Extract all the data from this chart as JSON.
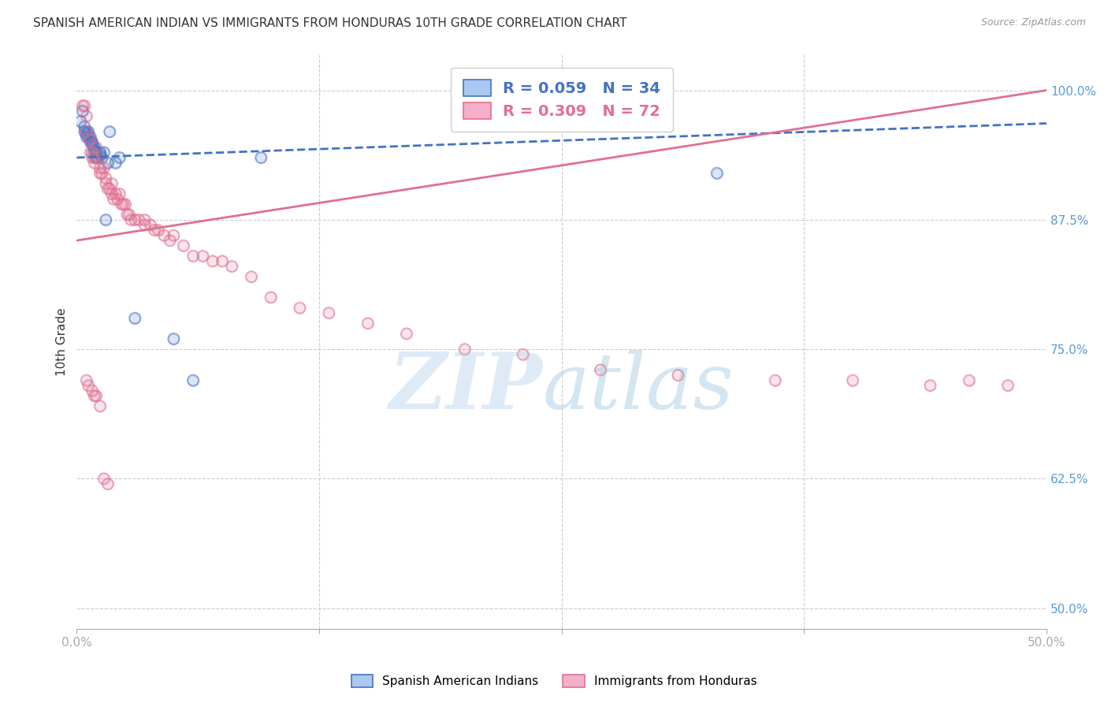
{
  "title": "SPANISH AMERICAN INDIAN VS IMMIGRANTS FROM HONDURAS 10TH GRADE CORRELATION CHART",
  "source": "Source: ZipAtlas.com",
  "ylabel": "10th Grade",
  "ylabel_color": "#333333",
  "ytick_labels": [
    "100.0%",
    "87.5%",
    "75.0%",
    "62.5%",
    "50.0%"
  ],
  "ytick_values": [
    1.0,
    0.875,
    0.75,
    0.625,
    0.5
  ],
  "xmin": 0.0,
  "xmax": 0.5,
  "ymin": 0.48,
  "ymax": 1.035,
  "blue_scatter_x": [
    0.002,
    0.003,
    0.004,
    0.004,
    0.005,
    0.005,
    0.005,
    0.006,
    0.006,
    0.007,
    0.007,
    0.007,
    0.008,
    0.008,
    0.009,
    0.009,
    0.01,
    0.01,
    0.011,
    0.012,
    0.012,
    0.013,
    0.014,
    0.015,
    0.016,
    0.017,
    0.02,
    0.022,
    0.03,
    0.05,
    0.06,
    0.095,
    0.2,
    0.33
  ],
  "blue_scatter_y": [
    0.97,
    0.98,
    0.965,
    0.96,
    0.958,
    0.955,
    0.96,
    0.96,
    0.955,
    0.955,
    0.952,
    0.95,
    0.95,
    0.948,
    0.945,
    0.942,
    0.935,
    0.94,
    0.935,
    0.938,
    0.94,
    0.935,
    0.94,
    0.875,
    0.93,
    0.96,
    0.93,
    0.935,
    0.78,
    0.76,
    0.72,
    0.935,
    0.98,
    0.92
  ],
  "pink_scatter_x": [
    0.003,
    0.004,
    0.005,
    0.005,
    0.006,
    0.007,
    0.007,
    0.008,
    0.008,
    0.009,
    0.009,
    0.01,
    0.011,
    0.012,
    0.012,
    0.013,
    0.014,
    0.015,
    0.015,
    0.016,
    0.017,
    0.018,
    0.018,
    0.019,
    0.02,
    0.021,
    0.022,
    0.023,
    0.024,
    0.025,
    0.026,
    0.027,
    0.028,
    0.03,
    0.032,
    0.035,
    0.035,
    0.038,
    0.04,
    0.042,
    0.045,
    0.048,
    0.05,
    0.055,
    0.06,
    0.065,
    0.07,
    0.075,
    0.08,
    0.09,
    0.1,
    0.115,
    0.13,
    0.15,
    0.17,
    0.2,
    0.23,
    0.27,
    0.31,
    0.36,
    0.4,
    0.44,
    0.46,
    0.48,
    0.005,
    0.006,
    0.008,
    0.009,
    0.01,
    0.012,
    0.014,
    0.016
  ],
  "pink_scatter_y": [
    0.985,
    0.985,
    0.975,
    0.96,
    0.955,
    0.952,
    0.94,
    0.94,
    0.935,
    0.935,
    0.93,
    0.945,
    0.935,
    0.925,
    0.92,
    0.92,
    0.925,
    0.915,
    0.91,
    0.905,
    0.905,
    0.91,
    0.9,
    0.895,
    0.9,
    0.895,
    0.9,
    0.89,
    0.89,
    0.89,
    0.88,
    0.88,
    0.875,
    0.875,
    0.875,
    0.875,
    0.87,
    0.87,
    0.865,
    0.865,
    0.86,
    0.855,
    0.86,
    0.85,
    0.84,
    0.84,
    0.835,
    0.835,
    0.83,
    0.82,
    0.8,
    0.79,
    0.785,
    0.775,
    0.765,
    0.75,
    0.745,
    0.73,
    0.725,
    0.72,
    0.72,
    0.715,
    0.72,
    0.715,
    0.72,
    0.715,
    0.71,
    0.705,
    0.705,
    0.695,
    0.625,
    0.62
  ],
  "blue_line_x": [
    0.0,
    0.5
  ],
  "blue_line_y": [
    0.935,
    0.968
  ],
  "pink_line_x": [
    0.0,
    0.5
  ],
  "pink_line_y": [
    0.855,
    1.0
  ],
  "blue_line_color": "#4472c4",
  "pink_line_color": "#e07090",
  "grid_color": "#cccccc",
  "background_color": "#ffffff",
  "title_fontsize": 11,
  "source_fontsize": 9,
  "axis_label_color": "#5b9bd5",
  "marker_size": 100,
  "marker_alpha_fill": 0.18,
  "marker_alpha_edge": 0.5,
  "marker_linewidth": 1.5
}
